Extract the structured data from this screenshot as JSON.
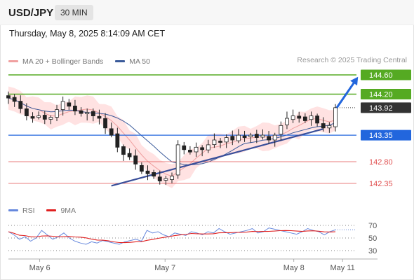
{
  "header": {
    "symbol": "USD/JPY",
    "timeframe": "30 MIN"
  },
  "datetime": "Thursday, May 8, 2025 8:14:09 AM CET",
  "legend": {
    "bollinger": {
      "label": "MA 20 + Bollinger Bands",
      "color": "#f0a0a0"
    },
    "ma50": {
      "label": "MA 50",
      "color": "#3a5a9a"
    }
  },
  "copyright": "Research © 2025 Trading Central",
  "rsi_legend": {
    "rsi": {
      "label": "RSI",
      "color": "#6688dd"
    },
    "ma9": {
      "label": "9MA",
      "color": "#e02020"
    }
  },
  "colors": {
    "up_candle": "#ffffff",
    "down_candle": "#222222",
    "target": "#55aa22",
    "pivot": "#2266dd",
    "support": "#e05050",
    "trendline": "#3a4f9a",
    "bb_fill": "#ffd6d6"
  },
  "price_levels": [
    {
      "label": "144.60",
      "kind": "target"
    },
    {
      "label": "144.20",
      "kind": "target"
    },
    {
      "label": "143.92",
      "kind": "last"
    },
    {
      "label": "143.35",
      "kind": "pivot"
    },
    {
      "label": "142.80",
      "kind": "support"
    },
    {
      "label": "142.35",
      "kind": "support"
    }
  ],
  "rsi_axis": [
    "70",
    "50",
    "30"
  ],
  "x_axis": [
    "May 6",
    "May 7",
    "May 8",
    "May 11"
  ],
  "chart_data": [
    {
      "type": "candlestick",
      "title": "",
      "series": [
        {
          "name": "MA 20 + Bollinger Bands"
        },
        {
          "name": "MA 50"
        }
      ],
      "x_ticks": [
        "May 6",
        "May 7",
        "May 8",
        "May 11"
      ],
      "levels": {
        "resistance": [
          144.6,
          144.2
        ],
        "last_price": 143.92,
        "pivot": 143.35,
        "support": [
          142.8,
          142.35
        ]
      },
      "close_path": [
        144.12,
        144.05,
        143.9,
        143.75,
        143.7,
        143.75,
        143.68,
        143.72,
        143.88,
        144.05,
        143.95,
        143.85,
        143.8,
        143.82,
        143.75,
        143.7,
        143.5,
        143.35,
        143.1,
        142.95,
        142.9,
        142.75,
        142.6,
        142.55,
        142.5,
        142.4,
        142.45,
        142.5,
        143.15,
        143.05,
        143.0,
        143.1,
        143.05,
        143.15,
        143.25,
        143.2,
        143.3,
        143.25,
        143.35,
        143.3,
        143.35,
        143.3,
        143.35,
        143.25,
        143.35,
        143.55,
        143.7,
        143.75,
        143.7,
        143.65,
        143.75,
        143.6,
        143.5,
        143.55,
        143.92
      ]
    },
    {
      "type": "line",
      "title": "",
      "series": [
        {
          "name": "RSI"
        },
        {
          "name": "9MA"
        }
      ],
      "ylim": [
        30,
        70
      ],
      "rsi_path": [
        60,
        55,
        48,
        52,
        45,
        50,
        62,
        55,
        48,
        52,
        58,
        50,
        45,
        42,
        40,
        44,
        42,
        46,
        44,
        42,
        40,
        44,
        46,
        48,
        45,
        62,
        58,
        60,
        55,
        52,
        58,
        56,
        54,
        60,
        58,
        55,
        60,
        58,
        65,
        60,
        56,
        58,
        60,
        62,
        65,
        58,
        60,
        66,
        64,
        62,
        60,
        58,
        56,
        60,
        65,
        62,
        60,
        55,
        60,
        63
      ]
    }
  ]
}
